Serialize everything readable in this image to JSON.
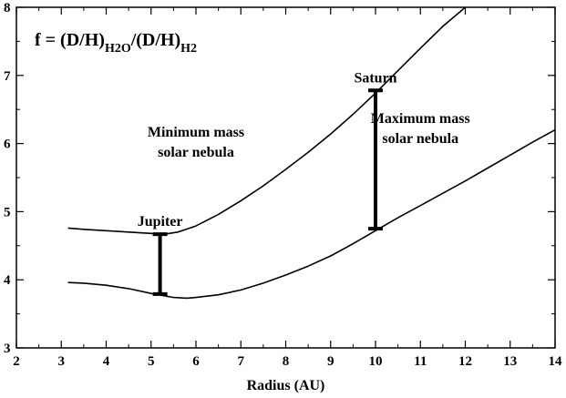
{
  "chart_data": {
    "type": "line",
    "title": "",
    "xlabel": "Radius (AU)",
    "ylabel": "",
    "xlim": [
      2,
      14
    ],
    "ylim": [
      3,
      8
    ],
    "xticks": [
      2,
      3,
      4,
      5,
      6,
      7,
      8,
      9,
      10,
      11,
      12,
      13,
      14
    ],
    "yticks": [
      3,
      4,
      5,
      6,
      7,
      8
    ],
    "grid": false,
    "formula": {
      "prefix": "f = (D/H)",
      "sub1": "H2O",
      "middle": "/(D/H)",
      "sub2": "H2"
    },
    "series": [
      {
        "x": [
          3.15,
          3.5,
          4,
          4.5,
          5,
          5.3,
          5.6,
          6,
          6.5,
          7,
          7.5,
          8,
          8.5,
          9,
          9.5,
          10,
          10.5,
          11,
          11.5,
          12
        ],
        "values": [
          4.76,
          4.74,
          4.72,
          4.7,
          4.68,
          4.67,
          4.7,
          4.79,
          4.96,
          5.16,
          5.38,
          5.62,
          5.87,
          6.14,
          6.43,
          6.74,
          7.07,
          7.4,
          7.72,
          8.0
        ]
      },
      {
        "x": [
          3.15,
          3.5,
          4,
          4.5,
          5,
          5.5,
          5.8,
          6,
          6.5,
          7,
          7.5,
          8,
          8.5,
          9,
          9.5,
          10,
          10.5,
          11,
          11.5,
          12,
          12.5,
          13,
          13.5,
          14
        ],
        "values": [
          3.96,
          3.95,
          3.92,
          3.87,
          3.8,
          3.74,
          3.73,
          3.74,
          3.78,
          3.85,
          3.95,
          4.07,
          4.2,
          4.35,
          4.53,
          4.72,
          4.91,
          5.09,
          5.27,
          5.45,
          5.64,
          5.83,
          6.02,
          6.2
        ]
      }
    ],
    "error_bars": [
      {
        "label": "Jupiter",
        "x": 5.2,
        "low": 3.79,
        "high": 4.67
      },
      {
        "label": "Saturn",
        "x": 10.0,
        "low": 4.75,
        "high": 6.78
      }
    ],
    "annotations": [
      {
        "lines": [
          "Minimum mass",
          "solar nebula"
        ],
        "x": 6.0,
        "y": 6.1
      },
      {
        "lines": [
          "Maximum mass",
          "solar nebula"
        ],
        "x": 11.0,
        "y": 6.3
      }
    ]
  }
}
